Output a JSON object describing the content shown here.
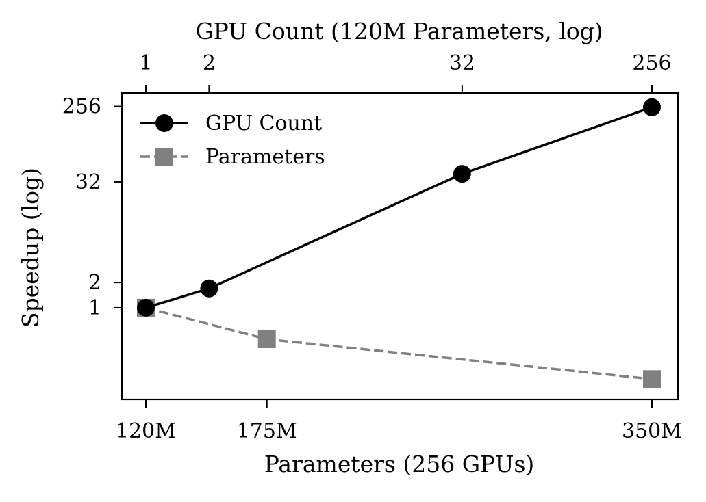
{
  "chart_data": {
    "type": "line",
    "ylabel": "Speedup (log)",
    "yscale": "log2",
    "ylim": [
      0.08,
      370
    ],
    "yticks": [
      {
        "value": 1,
        "label": "1"
      },
      {
        "value": 2,
        "label": "2"
      },
      {
        "value": 32,
        "label": "32"
      },
      {
        "value": 256,
        "label": "256"
      }
    ],
    "top_axis": {
      "label": "GPU Count (120M Parameters, log)",
      "scale": "log2",
      "ticks": [
        {
          "value": 1,
          "label": "1"
        },
        {
          "value": 2,
          "label": "2"
        },
        {
          "value": 32,
          "label": "32"
        },
        {
          "value": 256,
          "label": "256"
        }
      ]
    },
    "bottom_axis": {
      "label": "Parameters (256 GPUs)",
      "unit": "M",
      "range": [
        120,
        350
      ],
      "ticks": [
        {
          "value": 120,
          "label": "120M"
        },
        {
          "value": 175,
          "label": "175M"
        },
        {
          "value": 350,
          "label": "350M"
        }
      ]
    },
    "series": [
      {
        "name": "GPU Count",
        "axis": "top",
        "color": "#000000",
        "marker": "circle",
        "linestyle": "solid",
        "x": [
          1,
          2,
          32,
          256
        ],
        "y": [
          1,
          1.7,
          40,
          250
        ]
      },
      {
        "name": "Parameters",
        "axis": "bottom",
        "color": "#808080",
        "marker": "square",
        "linestyle": "dashed",
        "x": [
          120,
          175,
          350
        ],
        "y": [
          1,
          0.42,
          0.14
        ]
      }
    ],
    "legend_position": "upper-left"
  }
}
